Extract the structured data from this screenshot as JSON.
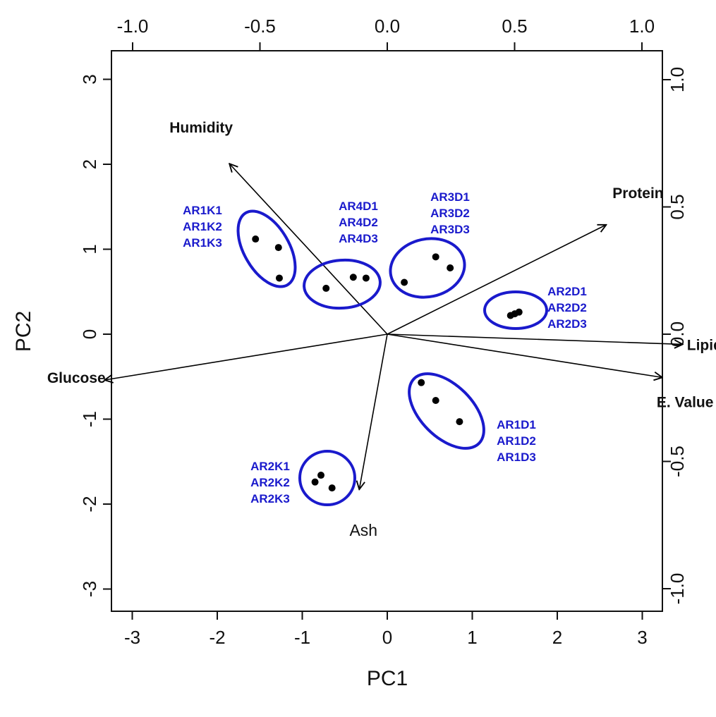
{
  "chart_data": {
    "type": "scatter",
    "subtype": "pca-biplot",
    "title": "",
    "xlabel": "PC1",
    "ylabel": "PC2",
    "xlim": [
      -3.3,
      3.3
    ],
    "ylim": [
      -3.3,
      3.3
    ],
    "x_ticks": [
      "-3",
      "-2",
      "-1",
      "0",
      "1",
      "2",
      "3"
    ],
    "y_ticks": [
      "-3",
      "-2",
      "-1",
      "0",
      "1",
      "2",
      "3"
    ],
    "top_axis_ticks": [
      "-1.0",
      "-0.5",
      "0.0",
      "0.5",
      "1.0"
    ],
    "right_axis_ticks": [
      "-1.0",
      "-0.5",
      "0.0",
      "0.5",
      "1.0"
    ],
    "loading_range": [
      -1.1,
      1.1
    ],
    "grid": false,
    "legend": "none",
    "colors": {
      "points": "#000000",
      "groups": "#1a1acc",
      "arrows": "#000000"
    },
    "loadings": [
      {
        "name": "Humidity",
        "x": -0.62,
        "y": 0.67,
        "label_style": "bold"
      },
      {
        "name": "Protein",
        "x": 0.86,
        "y": 0.43,
        "label_style": "bold"
      },
      {
        "name": "Lipid",
        "x": 1.16,
        "y": -0.04,
        "label_style": "bold"
      },
      {
        "name": "E. Value",
        "x": 1.08,
        "y": -0.17,
        "label_style": "bold"
      },
      {
        "name": "Glucose",
        "x": -1.11,
        "y": -0.18,
        "label_style": "bold"
      },
      {
        "name": "Ash",
        "x": -0.11,
        "y": -0.61,
        "label_style": "plain"
      }
    ],
    "groups": [
      {
        "labels": [
          "AR1K1",
          "AR1K2",
          "AR1K3"
        ],
        "points": [
          [
            -1.55,
            1.12
          ],
          [
            -1.28,
            1.02
          ],
          [
            -1.27,
            0.66
          ]
        ]
      },
      {
        "labels": [
          "AR4D1",
          "AR4D2",
          "AR4D3"
        ],
        "points": [
          [
            -0.72,
            0.54
          ],
          [
            -0.4,
            0.67
          ],
          [
            -0.25,
            0.66
          ]
        ]
      },
      {
        "labels": [
          "AR3D1",
          "AR3D2",
          "AR3D3"
        ],
        "points": [
          [
            0.2,
            0.61
          ],
          [
            0.57,
            0.91
          ],
          [
            0.74,
            0.78
          ]
        ]
      },
      {
        "labels": [
          "AR2D1",
          "AR2D2",
          "AR2D3"
        ],
        "points": [
          [
            1.45,
            0.22
          ],
          [
            1.5,
            0.24
          ],
          [
            1.55,
            0.26
          ]
        ]
      },
      {
        "labels": [
          "AR1D1",
          "AR1D2",
          "AR1D3"
        ],
        "points": [
          [
            0.4,
            -0.57
          ],
          [
            0.57,
            -0.78
          ],
          [
            0.85,
            -1.03
          ]
        ]
      },
      {
        "labels": [
          "AR2K1",
          "AR2K2",
          "AR2K3"
        ],
        "points": [
          [
            -0.85,
            -1.74
          ],
          [
            -0.78,
            -1.66
          ],
          [
            -0.65,
            -1.81
          ]
        ]
      }
    ]
  }
}
